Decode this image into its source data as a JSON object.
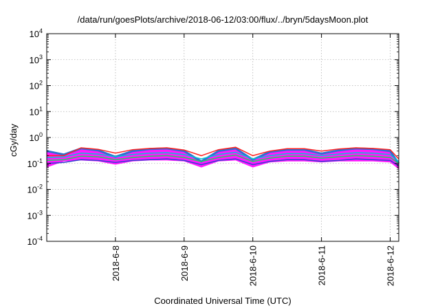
{
  "chart_data": {
    "type": "area",
    "title": "/data/run/goesPlots/archive/2018-06-12/03:00/flux/../bryn/5daysMoon.plot",
    "xlabel": "Coordinated Universal Time (UTC)",
    "ylabel": "cGy/day",
    "y_scale": "log",
    "ylim": [
      0.0001,
      10000
    ],
    "y_ticks": [
      {
        "value": 0.0001,
        "base": "10",
        "exp": "-4"
      },
      {
        "value": 0.001,
        "base": "10",
        "exp": "-3"
      },
      {
        "value": 0.01,
        "base": "10",
        "exp": "-2"
      },
      {
        "value": 0.1,
        "base": "10",
        "exp": "-1"
      },
      {
        "value": 1,
        "base": "10",
        "exp": "0"
      },
      {
        "value": 10,
        "base": "10",
        "exp": "1"
      },
      {
        "value": 100,
        "base": "10",
        "exp": "2"
      },
      {
        "value": 1000,
        "base": "10",
        "exp": "3"
      },
      {
        "value": 10000,
        "base": "10",
        "exp": "4"
      }
    ],
    "x_scale": "time",
    "xlim": [
      "2018-06-07T00:00",
      "2018-06-12T03:00"
    ],
    "x_ticks": [
      "2018-6-8",
      "2018-6-9",
      "2018-6-10",
      "2018-6-11",
      "2018-6-12"
    ],
    "x_tick_values": [
      "2018-06-08T00:00",
      "2018-06-09T00:00",
      "2018-06-10T00:00",
      "2018-06-11T00:00",
      "2018-06-12T00:00"
    ],
    "grid": true,
    "series_colors": [
      "#ff00ff",
      "#2f6fd0",
      "#ff2020",
      "#00c8d0",
      "#20d060",
      "#3040d0"
    ],
    "x": [
      "2018-06-07T00:00",
      "2018-06-07T06:00",
      "2018-06-07T12:00",
      "2018-06-07T18:00",
      "2018-06-08T00:00",
      "2018-06-08T06:00",
      "2018-06-08T12:00",
      "2018-06-08T18:00",
      "2018-06-09T00:00",
      "2018-06-09T06:00",
      "2018-06-09T12:00",
      "2018-06-09T18:00",
      "2018-06-10T00:00",
      "2018-06-10T06:00",
      "2018-06-10T12:00",
      "2018-06-10T18:00",
      "2018-06-11T00:00",
      "2018-06-11T06:00",
      "2018-06-11T12:00",
      "2018-06-11T18:00",
      "2018-06-12T00:00",
      "2018-06-12T03:00"
    ],
    "series": [
      {
        "values": [
          0.07,
          0.12,
          0.13,
          0.12,
          0.09,
          0.12,
          0.13,
          0.13,
          0.12,
          0.07,
          0.12,
          0.13,
          0.07,
          0.11,
          0.12,
          0.12,
          0.11,
          0.12,
          0.12,
          0.12,
          0.11,
          0.06
        ]
      },
      {
        "values": [
          0.3,
          0.22,
          0.38,
          0.32,
          0.18,
          0.3,
          0.36,
          0.38,
          0.3,
          0.12,
          0.3,
          0.38,
          0.14,
          0.28,
          0.34,
          0.34,
          0.24,
          0.32,
          0.38,
          0.36,
          0.3,
          0.1
        ]
      },
      {
        "values": [
          0.2,
          0.2,
          0.4,
          0.35,
          0.25,
          0.34,
          0.38,
          0.4,
          0.33,
          0.2,
          0.34,
          0.42,
          0.2,
          0.3,
          0.37,
          0.37,
          0.3,
          0.36,
          0.4,
          0.38,
          0.34,
          0.15
        ]
      },
      {
        "values": [
          0.17,
          0.18,
          0.25,
          0.23,
          0.18,
          0.22,
          0.25,
          0.26,
          0.22,
          0.15,
          0.22,
          0.27,
          0.15,
          0.2,
          0.24,
          0.24,
          0.2,
          0.23,
          0.26,
          0.25,
          0.22,
          0.12
        ]
      },
      {
        "values": [
          0.13,
          0.14,
          0.19,
          0.18,
          0.14,
          0.17,
          0.19,
          0.2,
          0.17,
          0.12,
          0.17,
          0.21,
          0.12,
          0.16,
          0.19,
          0.19,
          0.16,
          0.18,
          0.2,
          0.19,
          0.17,
          0.1
        ]
      },
      {
        "values": [
          0.1,
          0.11,
          0.14,
          0.13,
          0.11,
          0.13,
          0.14,
          0.15,
          0.13,
          0.09,
          0.13,
          0.15,
          0.09,
          0.12,
          0.14,
          0.14,
          0.12,
          0.13,
          0.15,
          0.14,
          0.13,
          0.08
        ]
      }
    ]
  }
}
